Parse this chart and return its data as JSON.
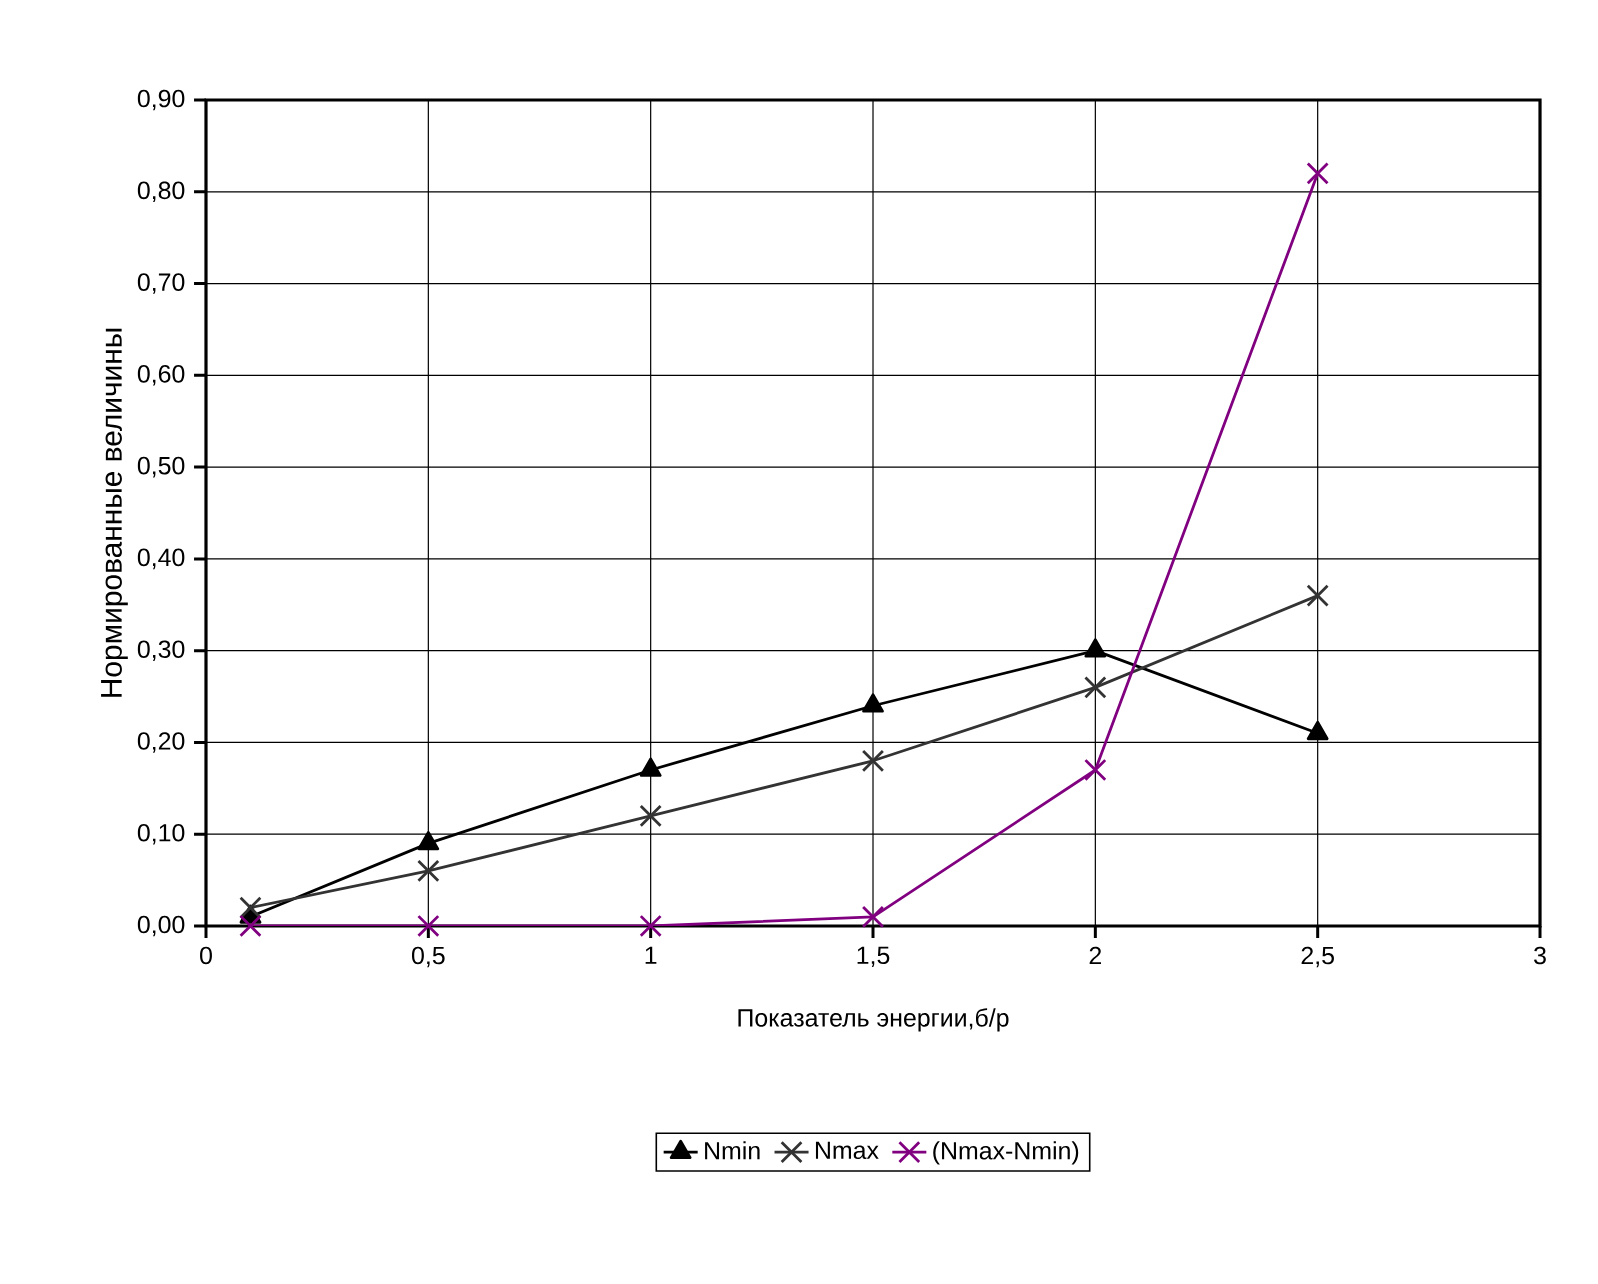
{
  "chart_data": {
    "type": "line",
    "xlabel": "Показатель энергии,б/р",
    "ylabel": "Нормированные величины",
    "x": [
      0.1,
      0.5,
      1,
      1.5,
      2,
      2.5
    ],
    "series": [
      {
        "name": "Nmin",
        "color": "#000000",
        "marker": "triangle",
        "values": [
          0.01,
          0.09,
          0.17,
          0.24,
          0.3,
          0.21
        ]
      },
      {
        "name": "Nmax",
        "color": "#333333",
        "marker": "cross",
        "values": [
          0.02,
          0.06,
          0.12,
          0.18,
          0.26,
          0.36
        ]
      },
      {
        "name": "(Nmax-Nmin)",
        "color": "#800080",
        "marker": "cross",
        "values": [
          0.0,
          0.0,
          0.0,
          0.01,
          0.17,
          0.82
        ]
      }
    ],
    "xlim": [
      0,
      3
    ],
    "xticks": [
      0,
      {
        "value": 0.5,
        "label": "0,5"
      },
      1,
      {
        "value": 1.5,
        "label": "1,5"
      },
      2,
      {
        "value": 2.5,
        "label": "2,5"
      },
      3
    ],
    "ylim": [
      0,
      0.9
    ],
    "yticks": [
      {
        "value": 0,
        "label": "0,00"
      },
      {
        "value": 0.1,
        "label": "0,10"
      },
      {
        "value": 0.2,
        "label": "0,20"
      },
      {
        "value": 0.3,
        "label": "0,30"
      },
      {
        "value": 0.4,
        "label": "0,40"
      },
      {
        "value": 0.5,
        "label": "0,50"
      },
      {
        "value": 0.6,
        "label": "0,60"
      },
      {
        "value": 0.7,
        "label": "0,70"
      },
      {
        "value": 0.8,
        "label": "0,80"
      },
      {
        "value": 0.9,
        "label": "0,90"
      }
    ],
    "grid": true,
    "legend": "bottom"
  }
}
